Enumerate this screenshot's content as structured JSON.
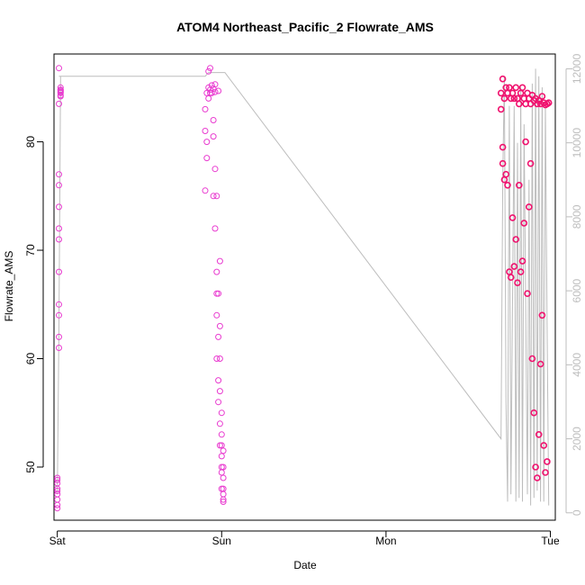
{
  "chart_data": {
    "type": "scatter",
    "title": "ATOM4 Northeast_Pacific_2 Flowrate_AMS",
    "xlabel": "Date",
    "ylabel": "Flowrate_AMS",
    "x_ticks": [
      {
        "label": "Sat",
        "value": 0
      },
      {
        "label": "Sun",
        "value": 1
      },
      {
        "label": "Mon",
        "value": 2
      },
      {
        "label": "Tue",
        "value": 3
      }
    ],
    "xlim": [
      -0.02,
      3.03
    ],
    "ylim": [
      45.1,
      88.1
    ],
    "y_ticks": [
      50,
      60,
      70,
      80
    ],
    "y2_ticks": [
      0,
      2000,
      4000,
      6000,
      8000,
      10000,
      12000
    ],
    "y2lim": [
      -200,
      12400
    ],
    "grid": false,
    "colors": {
      "points_early": "#e93cd0",
      "points_late": "#f0126e",
      "secondary_line": "#bdbdbd"
    },
    "series": [
      {
        "role": "secondary",
        "axis": "right",
        "style": "line",
        "x": [
          0.0,
          0.01,
          0.02,
          0.03,
          0.02,
          0.02,
          0.01,
          0.01,
          0.02,
          0.02,
          0.9,
          0.92,
          0.93,
          0.93,
          0.94,
          0.95,
          0.96,
          0.96,
          0.97,
          0.97,
          0.98,
          0.99,
          0.99,
          1.0,
          1.01,
          1.01,
          1.02,
          1.02,
          2.7,
          2.71,
          2.72,
          2.73,
          2.74,
          2.75,
          2.76,
          2.78,
          2.79,
          2.8,
          2.81,
          2.82,
          2.83,
          2.84,
          2.86,
          2.87,
          2.88,
          2.89,
          2.9,
          2.91,
          2.92,
          2.93,
          2.94,
          2.95,
          2.96,
          2.97,
          2.98,
          2.99
        ],
        "y": [
          500,
          5000,
          11800,
          11800,
          11800,
          11800,
          11800,
          11800,
          11800,
          11800,
          11800,
          11900,
          11900,
          11900,
          11900,
          11900,
          11900,
          11900,
          11900,
          11900,
          11900,
          11900,
          11900,
          11900,
          11900,
          11900,
          11900,
          11900,
          2000,
          9000,
          11800,
          3000,
          300,
          11000,
          500,
          11000,
          300,
          10000,
          400,
          11500,
          300,
          10500,
          500,
          9000,
          200,
          11600,
          400,
          12000,
          600,
          11800,
          300,
          11500,
          300,
          11000,
          5000,
          200
        ]
      },
      {
        "role": "primary",
        "axis": "left",
        "style": "points",
        "x": [
          0.0,
          0.0,
          0.0,
          0.0,
          0.0,
          0.0,
          0.0,
          0.0,
          0.0,
          0.01,
          0.01,
          0.01,
          0.01,
          0.01,
          0.01,
          0.01,
          0.01,
          0.01,
          0.01,
          0.01,
          0.01,
          0.02,
          0.02,
          0.02,
          0.02,
          0.02,
          0.02,
          0.02,
          0.02,
          0.9,
          0.9,
          0.9,
          0.91,
          0.91,
          0.91,
          0.92,
          0.92,
          0.92,
          0.93,
          0.93,
          0.93,
          0.94,
          0.94,
          0.95,
          0.95,
          0.95,
          0.95,
          0.96,
          0.96,
          0.96,
          0.96,
          0.97,
          0.97,
          0.97,
          0.97,
          0.97,
          0.98,
          0.98,
          0.98,
          0.98,
          0.98,
          0.99,
          0.99,
          0.99,
          0.99,
          0.99,
          0.99,
          1.0,
          1.0,
          1.0,
          1.0,
          1.0,
          1.0,
          1.0,
          1.01,
          1.01,
          1.01,
          1.01,
          1.01,
          1.01,
          1.01
        ],
        "y": [
          47.0,
          47.5,
          48.0,
          48.5,
          49.0,
          46.5,
          47.8,
          48.8,
          46.2,
          61.0,
          62.0,
          64.0,
          65.0,
          68.0,
          71.0,
          72.0,
          74.0,
          76.0,
          77.0,
          83.5,
          86.8,
          84.5,
          84.8,
          85.0,
          84.2,
          84.6,
          84.3,
          84.7,
          84.8,
          83.0,
          81.0,
          75.5,
          78.5,
          80.0,
          84.5,
          85.0,
          86.5,
          84.0,
          84.5,
          86.8,
          84.8,
          85.2,
          84.5,
          84.9,
          80.5,
          82.0,
          75.0,
          84.6,
          85.3,
          77.5,
          72.0,
          68.0,
          66.0,
          64.0,
          60.0,
          75.0,
          84.7,
          56.0,
          58.0,
          62.0,
          66.0,
          52.0,
          54.0,
          57.0,
          60.0,
          63.0,
          69.0,
          50.0,
          51.0,
          52.0,
          48.0,
          53.0,
          55.0,
          49.5,
          47.0,
          48.0,
          49.0,
          50.0,
          51.5,
          46.8,
          47.5
        ]
      },
      {
        "role": "primary",
        "axis": "left",
        "style": "points",
        "x": [
          2.7,
          2.7,
          2.71,
          2.71,
          2.71,
          2.72,
          2.72,
          2.73,
          2.73,
          2.74,
          2.74,
          2.75,
          2.75,
          2.76,
          2.76,
          2.77,
          2.77,
          2.78,
          2.78,
          2.79,
          2.79,
          2.8,
          2.8,
          2.81,
          2.81,
          2.82,
          2.82,
          2.83,
          2.83,
          2.84,
          2.84,
          2.85,
          2.85,
          2.86,
          2.86,
          2.87,
          2.87,
          2.88,
          2.88,
          2.89,
          2.89,
          2.9,
          2.9,
          2.91,
          2.91,
          2.92,
          2.92,
          2.93,
          2.93,
          2.94,
          2.94,
          2.95,
          2.95,
          2.96,
          2.96,
          2.97,
          2.97,
          2.98,
          2.98,
          2.99
        ],
        "y": [
          84.5,
          83.0,
          85.8,
          78.0,
          79.5,
          84.0,
          76.5,
          85.0,
          77.0,
          84.5,
          76.0,
          85.0,
          68.0,
          84.0,
          67.5,
          84.5,
          73.0,
          84.0,
          68.5,
          85.0,
          71.0,
          84.0,
          67.0,
          83.5,
          76.0,
          84.5,
          68.0,
          85.0,
          69.0,
          84.0,
          72.5,
          83.5,
          80.0,
          84.5,
          66.0,
          84.0,
          74.0,
          83.5,
          78.0,
          84.3,
          60.0,
          83.8,
          55.0,
          84.0,
          50.0,
          83.5,
          49.0,
          83.8,
          53.0,
          83.5,
          59.5,
          84.2,
          64.0,
          83.6,
          52.0,
          83.4,
          49.5,
          83.5,
          50.5,
          83.6
        ]
      }
    ]
  }
}
